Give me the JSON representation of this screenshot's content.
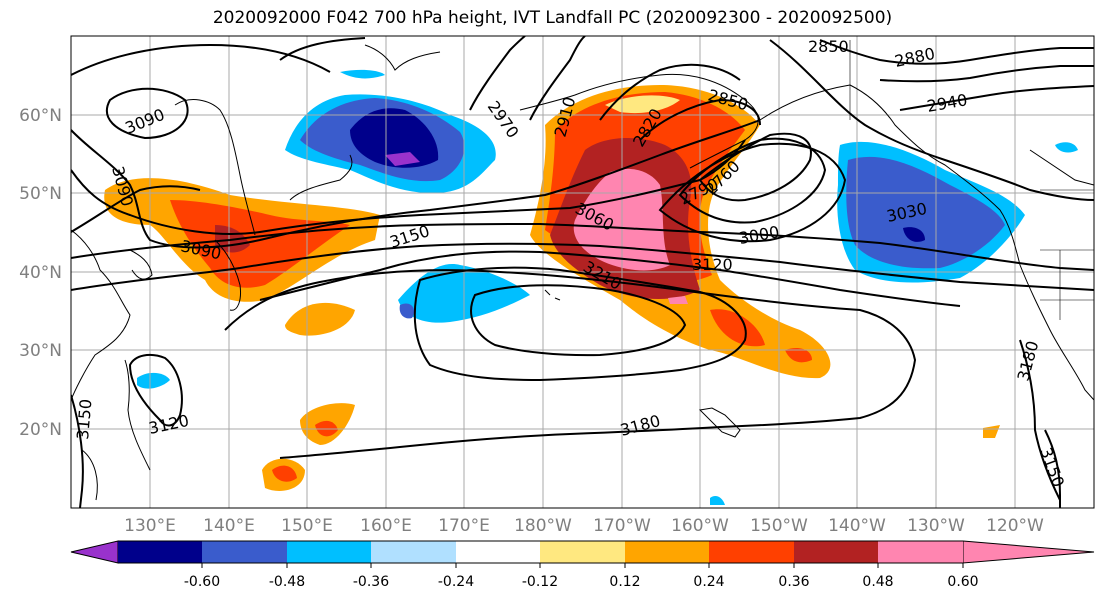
{
  "title": "2020092000 F042 700 hPa height, IVT Landfall PC (2020092300 - 2020092500)",
  "map": {
    "lat_labels": [
      "60°N",
      "50°N",
      "40°N",
      "30°N",
      "20°N"
    ],
    "lon_labels": [
      "130°E",
      "140°E",
      "150°E",
      "160°E",
      "170°E",
      "180°W",
      "170°W",
      "160°W",
      "150°W",
      "140°W",
      "130°W",
      "120°W"
    ],
    "height_contour_labels": [
      "3090",
      "3090",
      "3090",
      "3150",
      "3120",
      "3150",
      "2970",
      "2910",
      "2820",
      "2850",
      "2850",
      "2880",
      "2940",
      "3060",
      "2790",
      "2760",
      "3030",
      "3000",
      "3120",
      "3210",
      "3180",
      "3180",
      "3150"
    ]
  },
  "colorbar": {
    "tick_labels": [
      "-0.60",
      "-0.48",
      "-0.36",
      "-0.24",
      "-0.12",
      "0.12",
      "0.24",
      "0.36",
      "0.48",
      "0.60"
    ],
    "colors": [
      "#9932cc",
      "#00008b",
      "#3a5ccc",
      "#00bfff",
      "#b0e0ff",
      "#ffffff",
      "#ffe880",
      "#ffa500",
      "#ff4000",
      "#b22222",
      "#ff85b0"
    ]
  }
}
